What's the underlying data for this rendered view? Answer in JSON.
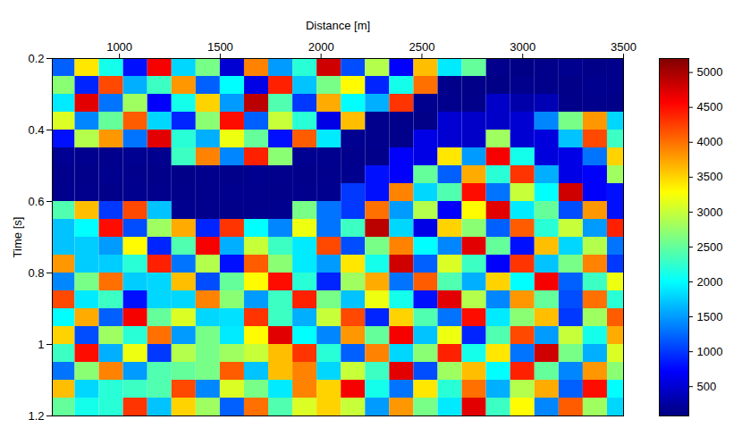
{
  "chart_data": {
    "type": "heatmap",
    "xlabel": "Distance [m]",
    "ylabel": "Time [s]",
    "xlim": [
      667,
      3500
    ],
    "ylim": [
      0.2,
      1.2
    ],
    "xticks": [
      1000,
      1500,
      2000,
      2500,
      3000,
      3500
    ],
    "yticks": [
      0.2,
      0.4,
      0.6,
      0.8,
      1,
      1.2
    ],
    "cells": {
      "x": [
        720,
        840,
        960,
        1080,
        1200,
        1320,
        1440,
        1560,
        1680,
        1800,
        1920,
        2040,
        2160,
        2280,
        2400,
        2520,
        2640,
        2760,
        2880,
        3000,
        3120,
        3240,
        3360,
        3480
      ],
      "y": [
        0.225,
        0.275,
        0.325,
        0.375,
        0.425,
        0.475,
        0.525,
        0.575,
        0.625,
        0.675,
        0.725,
        0.775,
        0.825,
        0.875,
        0.925,
        0.975,
        1.025,
        1.075,
        1.125,
        1.175
      ],
      "values": [
        [
          1200,
          3400,
          2100,
          800,
          4600,
          1800,
          2600,
          500,
          3900,
          1500,
          2200,
          4800,
          1100,
          2900,
          700,
          3600,
          1900,
          2500,
          150,
          120,
          140,
          160,
          130,
          150
        ],
        [
          2700,
          900,
          4200,
          1600,
          2300,
          3800,
          1200,
          2000,
          600,
          4400,
          1700,
          2600,
          3300,
          900,
          2100,
          4000,
          140,
          130,
          120,
          150,
          140,
          130,
          160,
          150
        ],
        [
          1900,
          4700,
          1300,
          2800,
          700,
          2100,
          3500,
          1500,
          4900,
          2400,
          1000,
          3700,
          2000,
          1600,
          4300,
          160,
          150,
          140,
          450,
          300,
          350,
          140,
          150,
          130
        ],
        [
          3100,
          1400,
          2500,
          4100,
          1800,
          900,
          2700,
          4500,
          1200,
          3000,
          2200,
          600,
          3600,
          150,
          140,
          130,
          500,
          450,
          450,
          500,
          1400,
          2600,
          3800,
          1800
        ],
        [
          800,
          2900,
          3800,
          1300,
          4700,
          2200,
          1600,
          3200,
          2500,
          800,
          4100,
          1900,
          170,
          150,
          140,
          600,
          500,
          450,
          2800,
          500,
          550,
          1700,
          4200,
          2300
        ],
        [
          180,
          160,
          150,
          170,
          160,
          2300,
          3900,
          1400,
          4400,
          2700,
          170,
          160,
          150,
          140,
          700,
          600,
          3400,
          1500,
          4600,
          2100,
          550,
          600,
          1300,
          3500
        ],
        [
          150,
          140,
          160,
          150,
          140,
          130,
          150,
          140,
          160,
          150,
          140,
          150,
          160,
          800,
          700,
          2500,
          1200,
          3700,
          2200,
          4300,
          1600,
          600,
          700,
          2800
        ],
        [
          160,
          150,
          140,
          160,
          150,
          140,
          150,
          160,
          150,
          140,
          150,
          160,
          1000,
          800,
          3900,
          1800,
          2400,
          4500,
          1300,
          3000,
          2000,
          4800,
          700,
          800
        ],
        [
          2400,
          3600,
          1000,
          4200,
          1700,
          160,
          150,
          140,
          150,
          160,
          2600,
          1300,
          1000,
          4000,
          1500,
          2900,
          700,
          3300,
          4700,
          1900,
          2500,
          1100,
          3800,
          800
        ],
        [
          1700,
          2000,
          4500,
          1100,
          2800,
          3700,
          900,
          4300,
          2000,
          1400,
          3200,
          1300,
          2300,
          4900,
          1800,
          600,
          3500,
          2700,
          1200,
          4100,
          2200,
          3000,
          1500,
          4400
        ],
        [
          1700,
          1750,
          1500,
          3300,
          900,
          2400,
          4600,
          1600,
          3000,
          2300,
          1900,
          4200,
          1100,
          2600,
          3900,
          2000,
          1400,
          4700,
          2500,
          800,
          3600,
          1800,
          2900,
          1300
        ],
        [
          3800,
          1750,
          1750,
          2200,
          4400,
          1300,
          2900,
          800,
          4100,
          2700,
          1900,
          1500,
          3400,
          2100,
          4800,
          1200,
          3100,
          2300,
          700,
          4300,
          1700,
          2600,
          3900,
          1000
        ],
        [
          1400,
          2600,
          4000,
          1750,
          1800,
          3600,
          1100,
          2500,
          3300,
          4500,
          2200,
          900,
          2800,
          3700,
          1300,
          4100,
          2400,
          1600,
          3500,
          2000,
          4600,
          1200,
          2300,
          3200
        ],
        [
          4200,
          1900,
          2300,
          800,
          1800,
          1800,
          3900,
          2700,
          1500,
          2300,
          4400,
          2600,
          1700,
          3200,
          2100,
          800,
          4700,
          2900,
          1400,
          3800,
          2500,
          1100,
          4000,
          2200
        ],
        [
          2000,
          3700,
          1200,
          4600,
          2500,
          3100,
          1800,
          1850,
          4300,
          2300,
          1600,
          3000,
          4200,
          900,
          3500,
          2400,
          1300,
          4500,
          1900,
          2700,
          3600,
          1000,
          2800,
          4100
        ],
        [
          3500,
          1100,
          2800,
          2200,
          4000,
          1500,
          2600,
          1900,
          3300,
          4700,
          2000,
          1400,
          3800,
          2500,
          4600,
          1700,
          3200,
          900,
          2400,
          4200,
          1500,
          3000,
          2100,
          3700
        ],
        [
          2300,
          4500,
          1600,
          3200,
          1000,
          2900,
          2600,
          2800,
          3000,
          3600,
          4300,
          2200,
          1200,
          3900,
          1800,
          2700,
          4400,
          2100,
          3400,
          1300,
          4800,
          2600,
          1600,
          3100
        ],
        [
          1300,
          2700,
          3900,
          1500,
          2400,
          2500,
          2600,
          4100,
          1700,
          3600,
          3900,
          1800,
          3000,
          2300,
          4700,
          1100,
          2800,
          3600,
          2000,
          4400,
          2500,
          1400,
          3800,
          2700
        ],
        [
          3600,
          1800,
          2200,
          2300,
          2400,
          4200,
          1400,
          3100,
          2600,
          1900,
          3900,
          3500,
          4600,
          2100,
          1300,
          3400,
          2200,
          4000,
          1600,
          2900,
          3700,
          1200,
          4500,
          2000
        ],
        [
          2500,
          2100,
          2200,
          4300,
          1700,
          3500,
          2800,
          1200,
          4000,
          2400,
          3100,
          3500,
          3000,
          1500,
          3800,
          2600,
          1900,
          4700,
          2300,
          3300,
          1400,
          4100,
          2800,
          1800
        ]
      ]
    },
    "colorbar": {
      "range": [
        80,
        5200
      ],
      "ticks": [
        500,
        1000,
        1500,
        2000,
        2500,
        3000,
        3500,
        4000,
        4500,
        5000
      ]
    }
  }
}
